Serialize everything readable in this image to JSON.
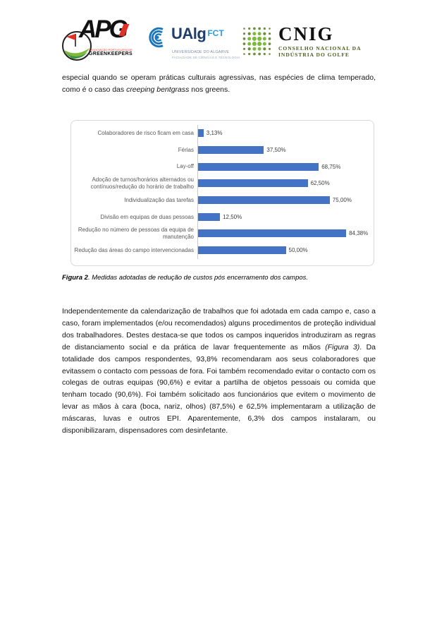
{
  "header": {
    "logos": {
      "apg": {
        "acronym": "APG",
        "subline1": "ASSOCIAÇÃO PORTUGUESA DE",
        "subline2": "GREENKEEPERS"
      },
      "ualg": {
        "acronym": "UAlg",
        "suffix": "FCT",
        "subline1": "UNIVERSIDADE DO ALGARVE",
        "subline2": "FACULDADE DE CIÊNCIAS E TECNOLOGIA"
      },
      "cnig": {
        "acronym": "CNIG",
        "subline1": "CONSELHO NACIONAL DA",
        "subline2": "INDÚSTRIA DO GOLFE"
      }
    }
  },
  "paragraph1": {
    "pre": "especial quando se operam práticas culturais agressivas, nas espécies de clima temperado, como é o caso das ",
    "italic": "creeping bentgrass",
    "post": " nos greens."
  },
  "figure_caption": {
    "label": "Figura 2",
    "text": ". Medidas adotadas de redução de custos pós encerramento dos campos."
  },
  "paragraph2": {
    "part1": "Independentemente da calendarização de trabalhos que foi adotada em cada campo e, caso a caso, foram implementados (e/ou recomendados) alguns procedimentos de proteção individual dos trabalhadores. Destes destaca-se que todos os campos inqueridos introduziram as regras de distanciamento social e da prática de lavar frequentemente as mãos ",
    "italic": "(Figura 3)",
    "part2": ". Da totalidade dos campos respondentes, 93,8% recomendaram aos seus colaboradores que evitassem o contacto com pessoas de fora. Foi também recomendado evitar o contacto com os colegas de outras equipas (90,6%) e evitar a partilha de objetos pessoais ou comida que tenham tocado (90,6%). Foi também solicitado aos funcionários que evitem o movimento de levar as mãos à cara (boca, nariz, olhos) (87,5%) e 62,5% implementaram a utilização de máscaras, luvas e outros EPI. Aparentemente, 6,3% dos campos instalaram, ou disponibilizaram, dispensadores com desinfetante."
  },
  "chart_data": {
    "type": "bar",
    "orientation": "horizontal",
    "categories": [
      "Colaboradores de risco ficam em casa",
      "Férias",
      "Lay-off",
      "Adoção de turnos/horários alternados ou contínuos/redução do horário de trabalho",
      "Individualização das tarefas",
      "Divisão em equipas de duas pessoas",
      "Redução no número de pessoas da equipa de manutenção",
      "Redução das áreas do campo intervencionadas"
    ],
    "values": [
      3.13,
      37.5,
      68.75,
      62.5,
      75.0,
      12.5,
      84.38,
      50.0
    ],
    "value_labels": [
      "3,13%",
      "37,50%",
      "68,75%",
      "62,50%",
      "75,00%",
      "12,50%",
      "84,38%",
      "50,00%"
    ],
    "bar_color": "#4472C4",
    "xlim": [
      0,
      100
    ],
    "grid": false,
    "legend": false,
    "title": "",
    "xlabel": "",
    "ylabel": ""
  }
}
